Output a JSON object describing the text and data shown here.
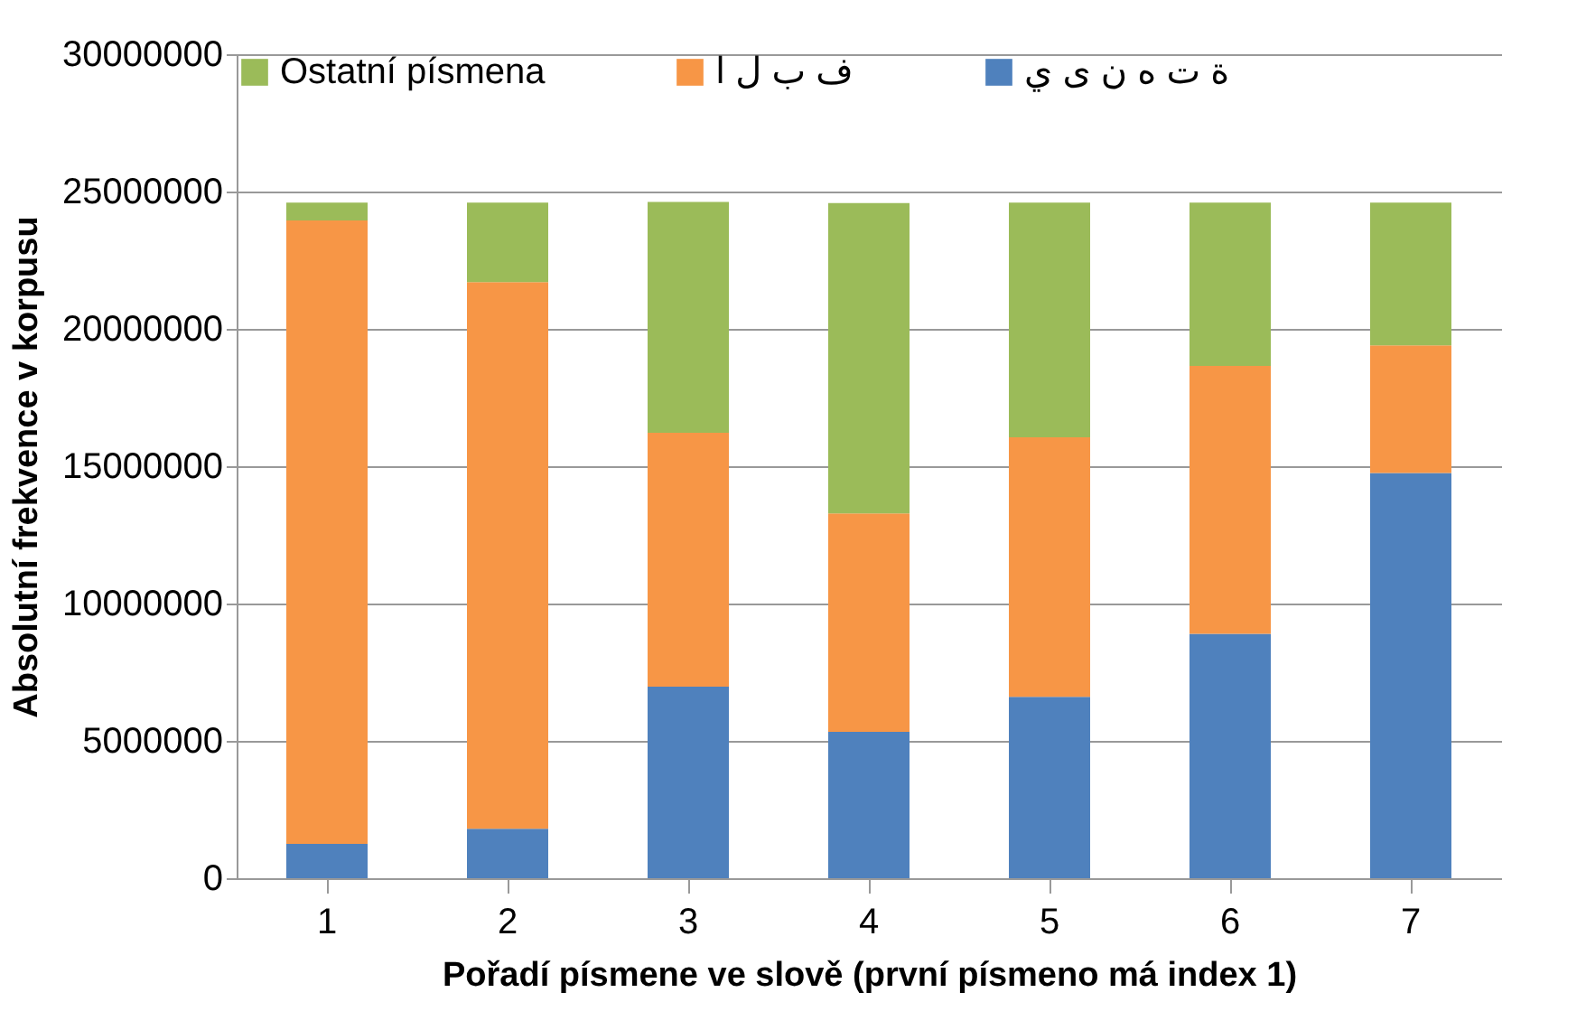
{
  "chart_data": {
    "type": "bar",
    "stacked": true,
    "xlabel": "Pořadí písmene ve slově (první písmeno má index  1)",
    "ylabel": "Absolutní frekvence v korpusu",
    "categories": [
      "1",
      "2",
      "3",
      "4",
      "5",
      "6",
      "7"
    ],
    "series": [
      {
        "name": "ة ت ه ن ى ي",
        "color": "#4f81bd",
        "values": [
          1250000,
          1800000,
          6970000,
          5330000,
          6600000,
          8900000,
          14750000
        ]
      },
      {
        "name": "ف ب ل ا",
        "color": "#f79646",
        "values": [
          22700000,
          19900000,
          9250000,
          7950000,
          9450000,
          9750000,
          4650000
        ]
      },
      {
        "name": "Ostatní písmena",
        "color": "#9bbb59",
        "values": [
          650000,
          2900000,
          8400000,
          11300000,
          8550000,
          5950000,
          5200000
        ]
      }
    ],
    "ylim": [
      0,
      30000000
    ],
    "yticks": [
      0,
      5000000,
      10000000,
      15000000,
      20000000,
      25000000,
      30000000
    ],
    "grid": "y",
    "legend": "top"
  }
}
